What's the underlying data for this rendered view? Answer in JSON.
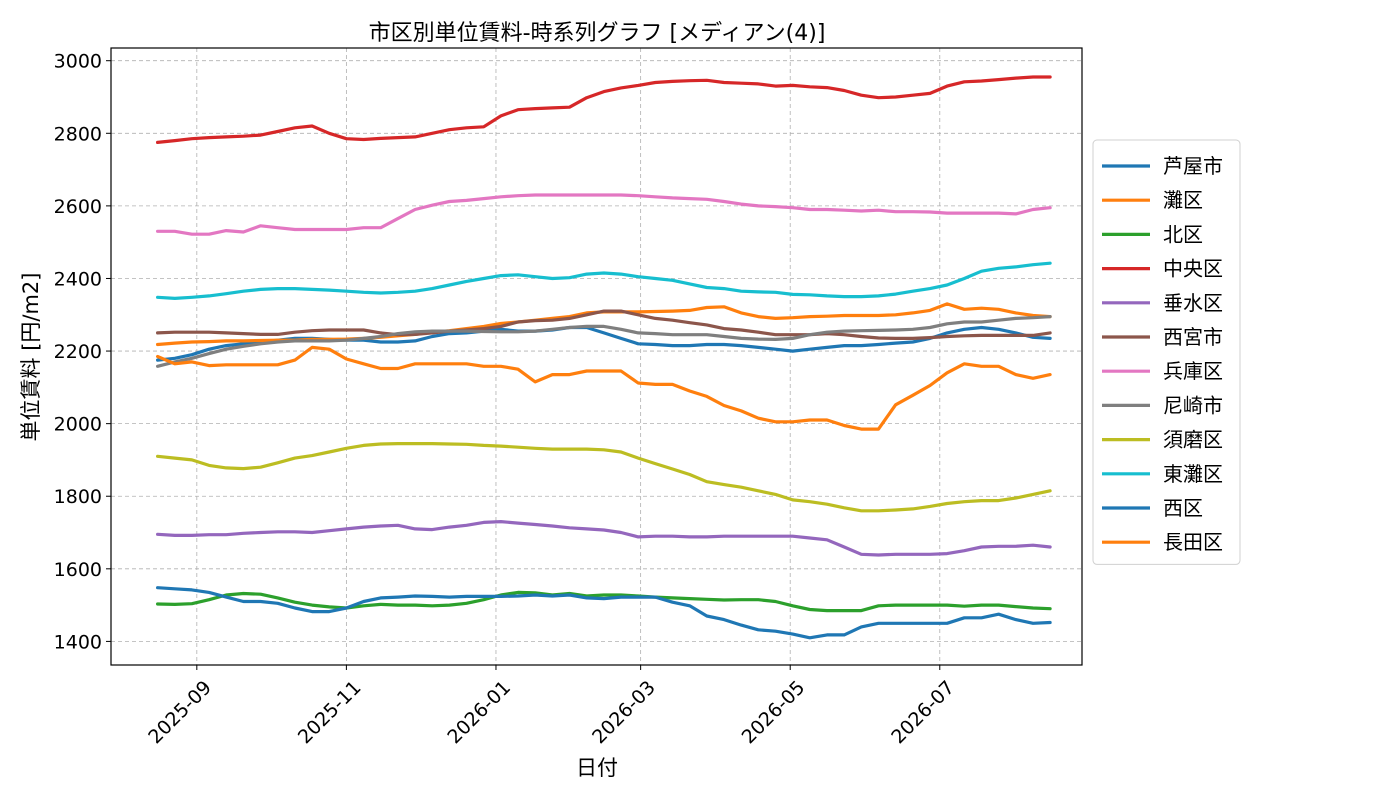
{
  "chart_data": {
    "type": "line",
    "title": "市区別単位賃料-時系列グラフ [メディアン(4)]",
    "xlabel": "日付",
    "ylabel": "単位賃料 [円/m2]",
    "ylim": [
      1335,
      3035
    ],
    "xlim": [
      "2025-07-28",
      "2026-08-28"
    ],
    "yticks": [
      1400,
      1600,
      1800,
      2000,
      2200,
      2400,
      2600,
      2800,
      3000
    ],
    "xticks": [
      "2025-09",
      "2025-11",
      "2026-01",
      "2026-03",
      "2026-05",
      "2026-07"
    ],
    "xtick_dates": [
      "2025-09-01",
      "2025-11-01",
      "2026-01-01",
      "2026-03-01",
      "2026-05-01",
      "2026-07-01"
    ],
    "grid": true,
    "legend_position": "right",
    "x": [
      "2025-08-16",
      "2025-08-23",
      "2025-08-30",
      "2025-09-06",
      "2025-09-13",
      "2025-09-20",
      "2025-09-27",
      "2025-10-04",
      "2025-10-11",
      "2025-10-18",
      "2025-10-25",
      "2025-11-01",
      "2025-11-08",
      "2025-11-15",
      "2025-11-22",
      "2025-11-29",
      "2025-12-06",
      "2025-12-13",
      "2025-12-20",
      "2025-12-27",
      "2026-01-03",
      "2026-01-10",
      "2026-01-17",
      "2026-01-24",
      "2026-01-31",
      "2026-02-07",
      "2026-02-14",
      "2026-02-21",
      "2026-02-28",
      "2026-03-07",
      "2026-03-14",
      "2026-03-21",
      "2026-03-28",
      "2026-04-04",
      "2026-04-11",
      "2026-04-18",
      "2026-04-25",
      "2026-05-02",
      "2026-05-09",
      "2026-05-16",
      "2026-05-23",
      "2026-05-30",
      "2026-06-06",
      "2026-06-13",
      "2026-06-20",
      "2026-06-27",
      "2026-07-04",
      "2026-07-11",
      "2026-07-18",
      "2026-07-25",
      "2026-08-01",
      "2026-08-08",
      "2026-08-15"
    ],
    "series": [
      {
        "name": "芦屋市",
        "color": "#1f77b4",
        "values": [
          2175,
          2180,
          2190,
          2205,
          2215,
          2220,
          2225,
          2230,
          2235,
          2235,
          2232,
          2230,
          2230,
          2225,
          2225,
          2228,
          2240,
          2248,
          2250,
          2255,
          2260,
          2255,
          2255,
          2258,
          2265,
          2265,
          2250,
          2235,
          2220,
          2218,
          2215,
          2215,
          2218,
          2218,
          2215,
          2210,
          2205,
          2200,
          2205,
          2210,
          2215,
          2215,
          2218,
          2222,
          2225,
          2235,
          2250,
          2260,
          2265,
          2260,
          2250,
          2238,
          2235
        ]
      },
      {
        "name": "灘区",
        "color": "#ff7f0e",
        "values": [
          2218,
          2222,
          2225,
          2226,
          2228,
          2228,
          2229,
          2230,
          2230,
          2232,
          2232,
          2233,
          2235,
          2238,
          2242,
          2246,
          2252,
          2256,
          2262,
          2268,
          2276,
          2280,
          2285,
          2290,
          2295,
          2305,
          2308,
          2308,
          2308,
          2309,
          2310,
          2312,
          2320,
          2322,
          2305,
          2295,
          2290,
          2292,
          2295,
          2296,
          2298,
          2298,
          2298,
          2300,
          2305,
          2312,
          2330,
          2315,
          2318,
          2315,
          2305,
          2298,
          2295
        ]
      },
      {
        "name": "北区",
        "color": "#2ca02c",
        "values": [
          1503,
          1502,
          1504,
          1515,
          1528,
          1532,
          1530,
          1520,
          1508,
          1500,
          1495,
          1492,
          1498,
          1502,
          1500,
          1500,
          1498,
          1500,
          1505,
          1515,
          1528,
          1535,
          1534,
          1528,
          1532,
          1525,
          1528,
          1528,
          1525,
          1522,
          1520,
          1518,
          1516,
          1514,
          1515,
          1515,
          1510,
          1498,
          1488,
          1485,
          1485,
          1485,
          1498,
          1500,
          1500,
          1500,
          1500,
          1497,
          1500,
          1500,
          1496,
          1492,
          1490
        ]
      },
      {
        "name": "中央区",
        "color": "#d62728",
        "values": [
          2775,
          2780,
          2785,
          2788,
          2790,
          2792,
          2795,
          2805,
          2815,
          2820,
          2800,
          2785,
          2783,
          2786,
          2788,
          2790,
          2800,
          2810,
          2815,
          2818,
          2848,
          2865,
          2868,
          2870,
          2872,
          2898,
          2915,
          2925,
          2932,
          2940,
          2943,
          2945,
          2946,
          2940,
          2938,
          2936,
          2930,
          2932,
          2928,
          2926,
          2918,
          2905,
          2898,
          2900,
          2905,
          2910,
          2930,
          2942,
          2944,
          2948,
          2952,
          2955,
          2955
        ]
      },
      {
        "name": "垂水区",
        "color": "#9467bd",
        "values": [
          1695,
          1692,
          1692,
          1694,
          1694,
          1698,
          1700,
          1702,
          1702,
          1700,
          1705,
          1710,
          1715,
          1718,
          1720,
          1710,
          1708,
          1715,
          1720,
          1728,
          1730,
          1726,
          1722,
          1718,
          1713,
          1710,
          1707,
          1700,
          1688,
          1690,
          1690,
          1688,
          1688,
          1690,
          1690,
          1690,
          1690,
          1690,
          1685,
          1680,
          1660,
          1640,
          1638,
          1640,
          1640,
          1640,
          1642,
          1650,
          1660,
          1662,
          1662,
          1665,
          1660
        ]
      },
      {
        "name": "西宮市",
        "color": "#8c564b",
        "values": [
          2250,
          2252,
          2252,
          2252,
          2250,
          2248,
          2246,
          2246,
          2252,
          2256,
          2258,
          2258,
          2258,
          2250,
          2245,
          2246,
          2250,
          2255,
          2258,
          2262,
          2268,
          2280,
          2284,
          2285,
          2290,
          2300,
          2310,
          2310,
          2300,
          2290,
          2285,
          2278,
          2272,
          2262,
          2258,
          2252,
          2245,
          2245,
          2245,
          2248,
          2245,
          2240,
          2236,
          2235,
          2235,
          2237,
          2240,
          2242,
          2243,
          2243,
          2243,
          2243,
          2250
        ]
      },
      {
        "name": "兵庫区",
        "color": "#e377c2",
        "values": [
          2530,
          2530,
          2522,
          2522,
          2532,
          2528,
          2545,
          2540,
          2535,
          2535,
          2535,
          2535,
          2540,
          2540,
          2565,
          2590,
          2602,
          2612,
          2615,
          2620,
          2625,
          2628,
          2630,
          2630,
          2630,
          2630,
          2630,
          2630,
          2628,
          2625,
          2622,
          2620,
          2618,
          2612,
          2605,
          2600,
          2598,
          2595,
          2590,
          2590,
          2588,
          2586,
          2588,
          2584,
          2584,
          2583,
          2580,
          2580,
          2580,
          2580,
          2578,
          2590,
          2595
        ]
      },
      {
        "name": "尼崎市",
        "color": "#7f7f7f",
        "values": [
          2158,
          2170,
          2180,
          2193,
          2205,
          2213,
          2220,
          2225,
          2228,
          2228,
          2228,
          2230,
          2235,
          2240,
          2248,
          2253,
          2255,
          2255,
          2255,
          2254,
          2253,
          2253,
          2255,
          2260,
          2265,
          2268,
          2268,
          2260,
          2250,
          2248,
          2245,
          2245,
          2245,
          2240,
          2235,
          2233,
          2232,
          2235,
          2245,
          2252,
          2255,
          2256,
          2257,
          2258,
          2260,
          2265,
          2275,
          2280,
          2280,
          2285,
          2290,
          2292,
          2295
        ]
      },
      {
        "name": "須磨区",
        "color": "#bcbd22",
        "values": [
          1910,
          1905,
          1900,
          1885,
          1878,
          1876,
          1880,
          1892,
          1905,
          1912,
          1922,
          1932,
          1940,
          1944,
          1945,
          1945,
          1945,
          1944,
          1943,
          1940,
          1938,
          1935,
          1932,
          1930,
          1930,
          1930,
          1928,
          1922,
          1905,
          1890,
          1875,
          1860,
          1840,
          1832,
          1825,
          1815,
          1805,
          1790,
          1785,
          1778,
          1768,
          1760,
          1760,
          1762,
          1765,
          1772,
          1780,
          1785,
          1788,
          1788,
          1795,
          1805,
          1815
        ]
      },
      {
        "name": "東灘区",
        "color": "#17becf",
        "values": [
          2348,
          2345,
          2348,
          2352,
          2358,
          2365,
          2370,
          2372,
          2372,
          2370,
          2368,
          2365,
          2362,
          2360,
          2362,
          2365,
          2372,
          2382,
          2392,
          2400,
          2408,
          2410,
          2405,
          2400,
          2402,
          2412,
          2415,
          2412,
          2405,
          2400,
          2395,
          2385,
          2375,
          2372,
          2365,
          2363,
          2362,
          2356,
          2355,
          2352,
          2350,
          2350,
          2352,
          2357,
          2365,
          2372,
          2382,
          2400,
          2420,
          2428,
          2432,
          2438,
          2442
        ]
      },
      {
        "name": "西区",
        "color": "#1f77b4",
        "values": [
          1548,
          1545,
          1542,
          1535,
          1522,
          1510,
          1510,
          1505,
          1492,
          1482,
          1482,
          1492,
          1510,
          1520,
          1522,
          1525,
          1524,
          1522,
          1524,
          1524,
          1524,
          1525,
          1528,
          1525,
          1528,
          1520,
          1518,
          1522,
          1522,
          1522,
          1508,
          1498,
          1470,
          1460,
          1445,
          1432,
          1428,
          1420,
          1410,
          1418,
          1418,
          1440,
          1450,
          1450,
          1450,
          1450,
          1450,
          1465,
          1465,
          1475,
          1460,
          1450,
          1452
        ]
      },
      {
        "name": "長田区",
        "color": "#ff7f0e",
        "values": [
          2185,
          2165,
          2170,
          2160,
          2162,
          2162,
          2162,
          2162,
          2175,
          2210,
          2205,
          2178,
          2165,
          2152,
          2152,
          2165,
          2165,
          2165,
          2165,
          2158,
          2158,
          2150,
          2115,
          2135,
          2135,
          2145,
          2145,
          2145,
          2112,
          2108,
          2108,
          2090,
          2075,
          2050,
          2035,
          2015,
          2005,
          2005,
          2010,
          2010,
          1995,
          1985,
          1985,
          2052,
          2078,
          2105,
          2140,
          2165,
          2158,
          2158,
          2135,
          2125,
          2135
        ]
      }
    ]
  }
}
